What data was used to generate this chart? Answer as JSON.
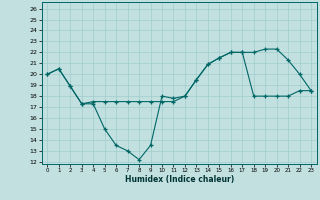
{
  "xlabel": "Humidex (Indice chaleur)",
  "ylabel": "",
  "bg_color": "#c2e0e0",
  "line_color": "#006666",
  "grid_color": "#a0cccc",
  "xlim": [
    -0.5,
    23.5
  ],
  "ylim": [
    12,
    26.5
  ],
  "yticks": [
    12,
    13,
    14,
    15,
    16,
    17,
    18,
    19,
    20,
    21,
    22,
    23,
    24,
    25,
    26
  ],
  "xticks": [
    0,
    1,
    2,
    3,
    4,
    5,
    6,
    7,
    8,
    9,
    10,
    11,
    12,
    13,
    14,
    15,
    16,
    17,
    18,
    19,
    20,
    21,
    22,
    23
  ],
  "line1_x": [
    0,
    1,
    2,
    3,
    4,
    5,
    6,
    7,
    8,
    9,
    10,
    11,
    12,
    13,
    14,
    15,
    16,
    17,
    18,
    19,
    20,
    21,
    22,
    23
  ],
  "line1_y": [
    20.0,
    20.5,
    18.9,
    17.3,
    17.3,
    15.0,
    13.5,
    13.0,
    12.2,
    13.5,
    18.0,
    17.8,
    18.0,
    19.5,
    20.9,
    21.5,
    22.0,
    22.0,
    22.0,
    22.3,
    22.3,
    21.3,
    20.0,
    18.5
  ],
  "line2_x": [
    0,
    1,
    2,
    3,
    4,
    5,
    6,
    7,
    8,
    9,
    10,
    11,
    12,
    13,
    14,
    15,
    16,
    17,
    18,
    19,
    20,
    21,
    22,
    23
  ],
  "line2_y": [
    20.0,
    20.5,
    18.9,
    17.3,
    17.5,
    17.5,
    17.5,
    17.5,
    17.5,
    17.5,
    17.5,
    17.5,
    18.0,
    19.5,
    20.9,
    21.5,
    22.0,
    22.0,
    18.0,
    18.0,
    18.0,
    18.0,
    18.5,
    18.5
  ]
}
